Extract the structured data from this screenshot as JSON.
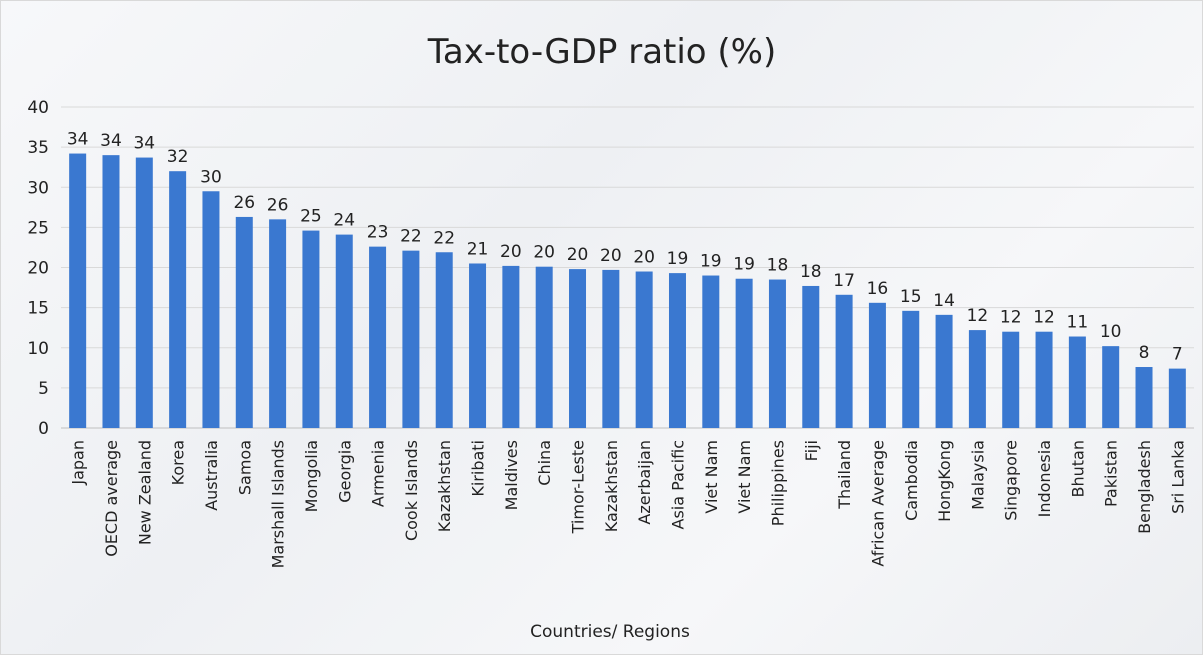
{
  "chart_data": {
    "type": "bar",
    "title": "Tax-to-GDP ratio (%)",
    "xlabel": "Countries/ Regions",
    "ylabel": "",
    "ylim": [
      0,
      40
    ],
    "yticks": [
      0,
      5,
      10,
      15,
      20,
      25,
      30,
      35,
      40
    ],
    "grid": true,
    "bar_color": "#3a78d0",
    "categories": [
      "Japan",
      "OECD average",
      "New Zealand",
      "Korea",
      "Australia",
      "Samoa",
      "Marshall Islands",
      "Mongolia",
      "Georgia",
      "Armenia",
      "Cook Islands",
      "Kazakhstan",
      "Kiribati",
      "Maldives",
      "China",
      "Timor-Leste",
      "Kazakhstan",
      "Azerbaijan",
      "Asia Pacific",
      "Viet Nam",
      "Viet Nam",
      "Philippines",
      "Fiji",
      "Thailand",
      "African Average",
      "Cambodia",
      "HongKong",
      "Malaysia",
      "Singapore",
      "Indonesia",
      "Bhutan",
      "Pakistan",
      "Bengladesh",
      "Sri Lanka"
    ],
    "values": [
      34.2,
      34.0,
      33.7,
      32.0,
      29.5,
      26.3,
      26.0,
      24.6,
      24.1,
      22.6,
      22.1,
      21.9,
      20.5,
      20.2,
      20.1,
      19.8,
      19.7,
      19.5,
      19.3,
      19.0,
      18.6,
      18.5,
      17.7,
      16.6,
      15.6,
      14.6,
      14.1,
      12.2,
      12.0,
      12.0,
      11.4,
      10.2,
      7.6,
      7.4
    ],
    "data_labels": [
      "34",
      "34",
      "34",
      "32",
      "30",
      "26",
      "26",
      "25",
      "24",
      "23",
      "22",
      "22",
      "21",
      "20",
      "20",
      "20",
      "20",
      "20",
      "19",
      "19",
      "19",
      "18",
      "18",
      "17",
      "16",
      "15",
      "14",
      "12",
      "12",
      "12",
      "11",
      "10",
      "8",
      "7"
    ]
  }
}
